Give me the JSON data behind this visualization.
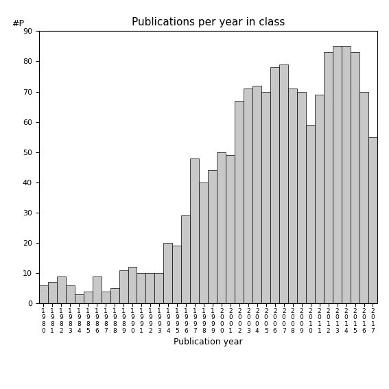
{
  "title": "Publications per year in class",
  "xlabel": "Publication year",
  "ylabel": "#P",
  "bar_color": "#c8c8c8",
  "bar_edgecolor": "#000000",
  "ylim": [
    0,
    90
  ],
  "yticks": [
    0,
    10,
    20,
    30,
    40,
    50,
    60,
    70,
    80,
    90
  ],
  "years": [
    1980,
    1981,
    1982,
    1983,
    1984,
    1985,
    1986,
    1987,
    1988,
    1989,
    1990,
    1991,
    1992,
    1993,
    1994,
    1995,
    1996,
    1997,
    1998,
    1999,
    2000,
    2001,
    2002,
    2003,
    2004,
    2005,
    2006,
    2007,
    2008,
    2009,
    2010,
    2011,
    2012,
    2013,
    2014,
    2015,
    2016,
    2017
  ],
  "values": [
    6,
    7,
    9,
    6,
    3,
    4,
    9,
    4,
    5,
    11,
    12,
    10,
    10,
    10,
    20,
    19,
    29,
    48,
    40,
    44,
    50,
    49,
    67,
    71,
    72,
    70,
    78,
    79,
    71,
    70,
    59,
    69,
    83,
    85,
    85,
    83,
    70,
    55
  ],
  "title_fontsize": 11,
  "axis_fontsize": 9,
  "tick_fontsize": 8
}
